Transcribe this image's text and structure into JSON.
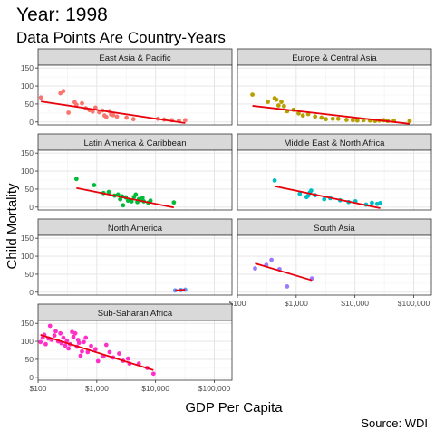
{
  "chart_data": {
    "type": "scatter",
    "title": "Year: 1998",
    "subtitle": "Data Points Are Country-Years",
    "xlabel": "GDP Per Capita",
    "ylabel": "Child Mortality",
    "caption": "Source: WDI",
    "x_scale": "log10",
    "xlim": [
      100,
      200000
    ],
    "ylim": [
      -8,
      158
    ],
    "x_ticks": [
      100,
      1000,
      10000,
      100000
    ],
    "x_tick_labels": [
      "$100",
      "$1,000",
      "$10,000",
      "$100,000"
    ],
    "y_ticks": [
      0,
      50,
      100,
      150
    ],
    "y_tick_labels": [
      "0",
      "50",
      "100",
      "150"
    ],
    "grid": true,
    "trend_line_color": "#e8000b",
    "facets": [
      {
        "name": "East Asia & Pacific",
        "color": "#f8766d",
        "points": [
          [
            112,
            68
          ],
          [
            240,
            80
          ],
          [
            270,
            86
          ],
          [
            330,
            26
          ],
          [
            420,
            55
          ],
          [
            450,
            48
          ],
          [
            560,
            52
          ],
          [
            650,
            38
          ],
          [
            750,
            33
          ],
          [
            850,
            29
          ],
          [
            950,
            40
          ],
          [
            1100,
            27
          ],
          [
            1250,
            32
          ],
          [
            1350,
            18
          ],
          [
            1450,
            14
          ],
          [
            1650,
            30
          ],
          [
            1750,
            21
          ],
          [
            1900,
            19
          ],
          [
            2200,
            15
          ],
          [
            3200,
            12
          ],
          [
            4200,
            8
          ],
          [
            11000,
            9
          ],
          [
            14000,
            7
          ],
          [
            19000,
            5
          ],
          [
            25000,
            4
          ],
          [
            32000,
            5
          ]
        ],
        "trend": [
          [
            112,
            57
          ],
          [
            32000,
            -3
          ]
        ]
      },
      {
        "name": "Europe & Central Asia",
        "color": "#b79f00",
        "points": [
          [
            180,
            76
          ],
          [
            330,
            56
          ],
          [
            430,
            66
          ],
          [
            460,
            62
          ],
          [
            500,
            46
          ],
          [
            560,
            56
          ],
          [
            620,
            44
          ],
          [
            700,
            30
          ],
          [
            900,
            34
          ],
          [
            1100,
            24
          ],
          [
            1300,
            18
          ],
          [
            1600,
            22
          ],
          [
            2100,
            15
          ],
          [
            2700,
            12
          ],
          [
            3200,
            8
          ],
          [
            4200,
            9
          ],
          [
            5200,
            9
          ],
          [
            7200,
            6
          ],
          [
            9200,
            5
          ],
          [
            11000,
            4
          ],
          [
            14000,
            5
          ],
          [
            18000,
            4
          ],
          [
            22000,
            3
          ],
          [
            26000,
            4
          ],
          [
            31000,
            5
          ],
          [
            36000,
            3
          ],
          [
            46000,
            4
          ],
          [
            85000,
            3
          ]
        ],
        "trend": [
          [
            180,
            45
          ],
          [
            85000,
            -5
          ]
        ]
      },
      {
        "name": "Latin America & Caribbean",
        "color": "#00ba38",
        "points": [
          [
            450,
            78
          ],
          [
            900,
            61
          ],
          [
            1300,
            39
          ],
          [
            1600,
            42
          ],
          [
            2000,
            32
          ],
          [
            2300,
            35
          ],
          [
            2500,
            22
          ],
          [
            2700,
            30
          ],
          [
            3100,
            27
          ],
          [
            3400,
            18
          ],
          [
            3900,
            16
          ],
          [
            4300,
            28
          ],
          [
            4600,
            35
          ],
          [
            4900,
            14
          ],
          [
            5200,
            22
          ],
          [
            5600,
            20
          ],
          [
            6300,
            16
          ],
          [
            7500,
            12
          ],
          [
            8200,
            18
          ],
          [
            6000,
            26
          ],
          [
            2800,
            5
          ],
          [
            20500,
            13
          ]
        ],
        "trend": [
          [
            450,
            53
          ],
          [
            20500,
            -1
          ]
        ]
      },
      {
        "name": "Middle East & North Africa",
        "color": "#00bfc4",
        "points": [
          [
            430,
            74
          ],
          [
            1150,
            37
          ],
          [
            1500,
            28
          ],
          [
            1600,
            32
          ],
          [
            1700,
            40
          ],
          [
            1800,
            46
          ],
          [
            2100,
            33
          ],
          [
            3000,
            22
          ],
          [
            3800,
            25
          ],
          [
            5600,
            19
          ],
          [
            7800,
            14
          ],
          [
            10200,
            16
          ],
          [
            15500,
            7
          ],
          [
            19500,
            12
          ],
          [
            24000,
            9
          ],
          [
            27000,
            11
          ]
        ],
        "trend": [
          [
            430,
            58
          ],
          [
            27000,
            -3
          ]
        ]
      },
      {
        "name": "North America",
        "color": "#619cff",
        "points": [
          [
            21500,
            5
          ],
          [
            27000,
            6
          ],
          [
            32000,
            7
          ]
        ],
        "trend": [
          [
            21500,
            5
          ],
          [
            32000,
            7
          ]
        ]
      },
      {
        "name": "South Asia",
        "color": "#9a7aff",
        "points": [
          [
            200,
            66
          ],
          [
            310,
            76
          ],
          [
            380,
            90
          ],
          [
            520,
            64
          ],
          [
            700,
            16
          ],
          [
            1850,
            38
          ]
        ],
        "trend": [
          [
            200,
            80
          ],
          [
            1850,
            33
          ]
        ]
      },
      {
        "name": "Sub-Saharan Africa",
        "color": "#ff30c8",
        "points": [
          [
            110,
            98
          ],
          [
            120,
            110
          ],
          [
            128,
            118
          ],
          [
            135,
            92
          ],
          [
            150,
            108
          ],
          [
            160,
            143
          ],
          [
            170,
            104
          ],
          [
            190,
            116
          ],
          [
            200,
            128
          ],
          [
            220,
            100
          ],
          [
            240,
            122
          ],
          [
            250,
            95
          ],
          [
            270,
            110
          ],
          [
            290,
            88
          ],
          [
            310,
            102
          ],
          [
            330,
            80
          ],
          [
            350,
            92
          ],
          [
            380,
            126
          ],
          [
            400,
            112
          ],
          [
            430,
            122
          ],
          [
            460,
            85
          ],
          [
            480,
            104
          ],
          [
            500,
            96
          ],
          [
            530,
            60
          ],
          [
            560,
            72
          ],
          [
            600,
            98
          ],
          [
            650,
            110
          ],
          [
            700,
            70
          ],
          [
            800,
            87
          ],
          [
            950,
            78
          ],
          [
            1050,
            45
          ],
          [
            1300,
            58
          ],
          [
            1450,
            90
          ],
          [
            1650,
            70
          ],
          [
            1900,
            55
          ],
          [
            2400,
            66
          ],
          [
            2800,
            46
          ],
          [
            3400,
            52
          ],
          [
            3600,
            38
          ],
          [
            5200,
            38
          ],
          [
            7200,
            26
          ],
          [
            9200,
            10
          ]
        ],
        "trend": [
          [
            110,
            118
          ],
          [
            9200,
            20
          ]
        ]
      }
    ]
  }
}
